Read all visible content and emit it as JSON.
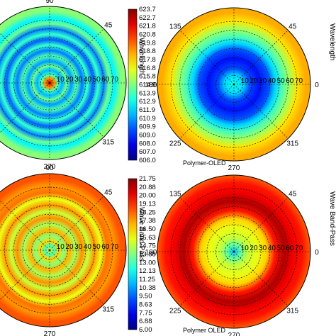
{
  "chart_data": [
    {
      "type": "heatmap",
      "projection": "polar",
      "panel": "top-left",
      "title": "",
      "angle_ticks": [
        "90",
        "45",
        "0",
        "315",
        "270"
      ],
      "radial_ticks": [
        "10",
        "20",
        "30",
        "40",
        "50",
        "60",
        "70"
      ],
      "colorbar": {
        "label": "Wavelength",
        "ticks": [
          "623.7",
          "622.7",
          "621.8",
          "620.8",
          "619.8",
          "618.8",
          "617.8",
          "616.8",
          "615.8",
          "614.9",
          "613.9",
          "612.9",
          "611.9",
          "610.9",
          "609.9",
          "609.0",
          "608.0",
          "607.0",
          "606.0"
        ],
        "min": 606.0,
        "max": 623.7
      },
      "rings": [
        {
          "r": 0,
          "value": 622.5
        },
        {
          "r": 5,
          "value": 619.0
        },
        {
          "r": 9,
          "value": 614.0
        },
        {
          "r": 14,
          "value": 611.5
        },
        {
          "r": 19,
          "value": 614.5
        },
        {
          "r": 24,
          "value": 611.0
        },
        {
          "r": 30,
          "value": 614.0
        },
        {
          "r": 36,
          "value": 610.5
        },
        {
          "r": 42,
          "value": 613.5
        },
        {
          "r": 48,
          "value": 610.0
        },
        {
          "r": 54,
          "value": 613.5
        },
        {
          "r": 60,
          "value": 610.5
        },
        {
          "r": 66,
          "value": 614.5
        },
        {
          "r": 72,
          "value": 612.5
        },
        {
          "r": 80,
          "value": 615.0
        }
      ]
    },
    {
      "type": "heatmap",
      "projection": "polar",
      "panel": "top-right",
      "title": "Polymer-OLED",
      "angle_ticks": [
        "135",
        "45",
        "180",
        "0",
        "225",
        "315",
        "270"
      ],
      "radial_ticks": [
        "10",
        "20",
        "30",
        "40",
        "50",
        "60",
        "70"
      ],
      "colorbar": {
        "label": "Wavelength",
        "min": 606.0,
        "max": 623.7
      },
      "rings": [
        {
          "r": 0,
          "value": 613.0
        },
        {
          "r": 10,
          "value": 612.0
        },
        {
          "r": 18,
          "value": 609.5
        },
        {
          "r": 28,
          "value": 608.5
        },
        {
          "r": 38,
          "value": 609.5
        },
        {
          "r": 46,
          "value": 612.0
        },
        {
          "r": 54,
          "value": 614.0
        },
        {
          "r": 62,
          "value": 615.5
        },
        {
          "r": 70,
          "value": 617.5
        },
        {
          "r": 80,
          "value": 618.5
        }
      ]
    },
    {
      "type": "heatmap",
      "projection": "polar",
      "panel": "bottom-left",
      "title": "",
      "angle_ticks": [
        "90",
        "45",
        "0",
        "315",
        "270"
      ],
      "radial_ticks": [
        "10",
        "20",
        "30",
        "40",
        "50",
        "60",
        "70"
      ],
      "colorbar": {
        "label": "Wave Band-Pass",
        "ticks": [
          "21.75",
          "20.88",
          "20.00",
          "19.13",
          "18.25",
          "17.38",
          "16.50",
          "15.63",
          "14.75",
          "13.88",
          "13.00",
          "12.13",
          "11.25",
          "10.38",
          "9.50",
          "8.63",
          "7.75",
          "6.88",
          "6.00"
        ],
        "min": 6.0,
        "max": 21.75
      },
      "rings": [
        {
          "r": 0,
          "value": 16.0
        },
        {
          "r": 5,
          "value": 13.0
        },
        {
          "r": 10,
          "value": 16.5
        },
        {
          "r": 16,
          "value": 14.0
        },
        {
          "r": 22,
          "value": 17.0
        },
        {
          "r": 29,
          "value": 14.5
        },
        {
          "r": 36,
          "value": 17.5
        },
        {
          "r": 43,
          "value": 15.0
        },
        {
          "r": 50,
          "value": 17.5
        },
        {
          "r": 57,
          "value": 15.5
        },
        {
          "r": 64,
          "value": 18.0
        },
        {
          "r": 72,
          "value": 17.5
        },
        {
          "r": 80,
          "value": 18.5
        }
      ]
    },
    {
      "type": "heatmap",
      "projection": "polar",
      "panel": "bottom-right",
      "title": "Polymer OLED",
      "angle_ticks": [
        "135",
        "45",
        "180",
        "0",
        "225",
        "315",
        "270"
      ],
      "radial_ticks": [
        "10",
        "20",
        "30",
        "40",
        "50",
        "60",
        "70"
      ],
      "colorbar": {
        "label": "Wave Band-Pass",
        "min": 6.0,
        "max": 21.75
      },
      "rings": [
        {
          "r": 0,
          "value": 11.0
        },
        {
          "r": 8,
          "value": 13.5
        },
        {
          "r": 16,
          "value": 15.0
        },
        {
          "r": 26,
          "value": 15.5
        },
        {
          "r": 36,
          "value": 16.5
        },
        {
          "r": 46,
          "value": 19.5
        },
        {
          "r": 56,
          "value": 21.0
        },
        {
          "r": 66,
          "value": 20.0
        },
        {
          "r": 76,
          "value": 19.5
        },
        {
          "r": 84,
          "value": 18.5
        }
      ]
    }
  ]
}
